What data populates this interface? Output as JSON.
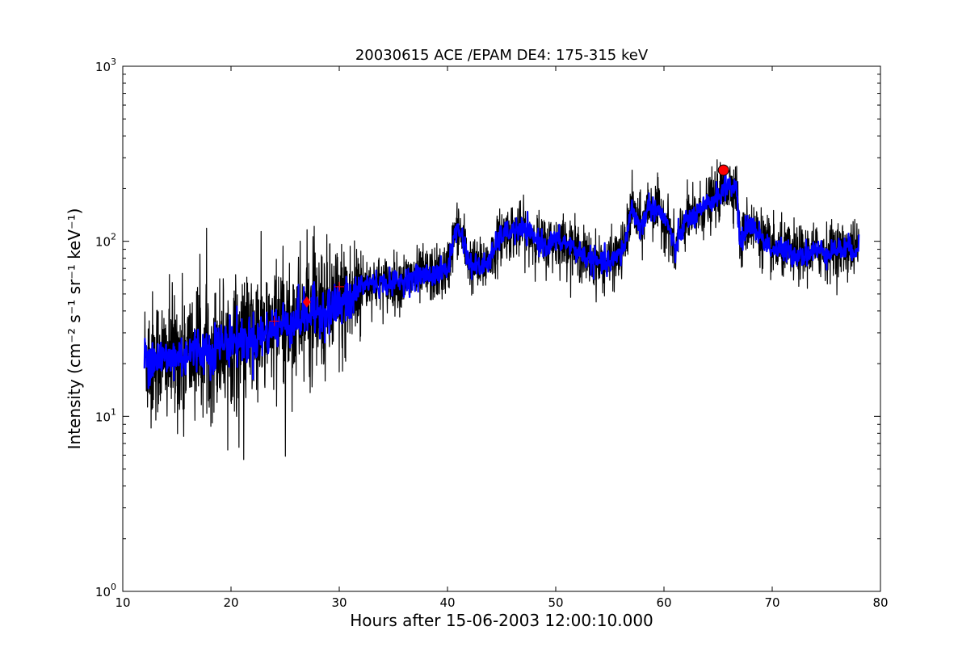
{
  "chart_data": {
    "type": "line",
    "title": "20030615 ACE /EPAM DE4: 175-315 keV",
    "xlabel": "Hours after 15-06-2003 12:00:10.000",
    "ylabel": "Intensity (cm⁻² s⁻¹ sr⁻¹ keV⁻¹)",
    "xlim": [
      10,
      80
    ],
    "ylim": [
      1,
      1000
    ],
    "yscale": "log",
    "x_ticks": [
      10,
      20,
      30,
      40,
      50,
      60,
      70,
      80
    ],
    "y_ticks": [
      {
        "value": 1,
        "base": "10",
        "exp": "0"
      },
      {
        "value": 10,
        "base": "10",
        "exp": "1"
      },
      {
        "value": 100,
        "base": "10",
        "exp": "2"
      },
      {
        "value": 1000,
        "base": "10",
        "exp": "3"
      }
    ],
    "grid": false,
    "series": [
      {
        "color": "#000000",
        "style": "noisy raw data",
        "x": [
          12,
          13,
          14,
          15,
          16,
          17,
          18,
          19,
          20,
          21,
          22,
          23,
          24,
          25,
          26,
          27,
          28,
          29,
          30,
          31,
          32,
          33,
          34,
          35,
          36,
          37,
          38,
          39,
          40,
          40.5,
          41,
          41.5,
          42,
          43,
          44,
          45,
          46,
          47,
          48,
          49,
          50,
          51,
          52,
          53,
          54,
          55,
          56,
          56.5,
          57,
          57.5,
          58,
          58.5,
          59,
          59.5,
          60,
          60.5,
          61,
          61.5,
          62,
          63,
          64,
          65,
          66,
          66.7,
          67.1,
          67.5,
          68,
          69,
          70,
          71,
          72,
          73,
          74,
          75,
          76,
          77,
          78
        ],
        "y": [
          22,
          22,
          21,
          22,
          23,
          24,
          24,
          26,
          27,
          27,
          28,
          29,
          32,
          34,
          36,
          38,
          40,
          41,
          43,
          45,
          56,
          58,
          57,
          58,
          60,
          62,
          64,
          65,
          68,
          100,
          120,
          100,
          75,
          70,
          80,
          110,
          115,
          115,
          105,
          95,
          100,
          98,
          88,
          80,
          75,
          75,
          85,
          100,
          160,
          130,
          120,
          160,
          155,
          150,
          135,
          120,
          85,
          110,
          130,
          140,
          160,
          185,
          210,
          200,
          90,
          120,
          125,
          105,
          90,
          88,
          85,
          85,
          88,
          88,
          90,
          90,
          92
        ]
      },
      {
        "color": "#0000ff",
        "style": "smoothed",
        "x": [
          12,
          13,
          14,
          15,
          16,
          17,
          18,
          19,
          20,
          21,
          22,
          23,
          24,
          25,
          26,
          27,
          28,
          29,
          30,
          31,
          32,
          33,
          34,
          35,
          36,
          37,
          38,
          39,
          40,
          40.5,
          41,
          41.5,
          42,
          43,
          44,
          45,
          46,
          47,
          48,
          49,
          50,
          51,
          52,
          53,
          54,
          55,
          56,
          56.5,
          57,
          57.5,
          58,
          58.5,
          59,
          59.5,
          60,
          60.5,
          61,
          61.5,
          62,
          63,
          64,
          65,
          66,
          66.7,
          67.1,
          67.5,
          68,
          69,
          70,
          71,
          72,
          73,
          74,
          75,
          76,
          77,
          78
        ],
        "y": [
          22,
          22,
          21,
          22,
          23,
          24,
          24,
          26,
          27,
          27,
          28,
          29,
          32,
          34,
          36,
          38,
          40,
          41,
          43,
          45,
          56,
          58,
          57,
          58,
          60,
          62,
          64,
          65,
          68,
          100,
          120,
          100,
          75,
          70,
          80,
          110,
          115,
          115,
          105,
          95,
          100,
          98,
          88,
          80,
          75,
          75,
          85,
          100,
          160,
          130,
          120,
          160,
          155,
          150,
          135,
          120,
          85,
          110,
          130,
          140,
          160,
          185,
          210,
          200,
          90,
          120,
          125,
          105,
          90,
          88,
          85,
          85,
          88,
          88,
          90,
          90,
          92
        ]
      }
    ],
    "markers": [
      {
        "x": 24,
        "y": 35,
        "shape": "plus",
        "color": "#ff0000"
      },
      {
        "x": 27,
        "y": 45,
        "shape": "diamond",
        "color": "#ff0000"
      },
      {
        "x": 30,
        "y": 55,
        "shape": "plus",
        "color": "#ff0000"
      },
      {
        "x": 65.5,
        "y": 255,
        "shape": "circle",
        "color": "#ff0000"
      }
    ]
  }
}
